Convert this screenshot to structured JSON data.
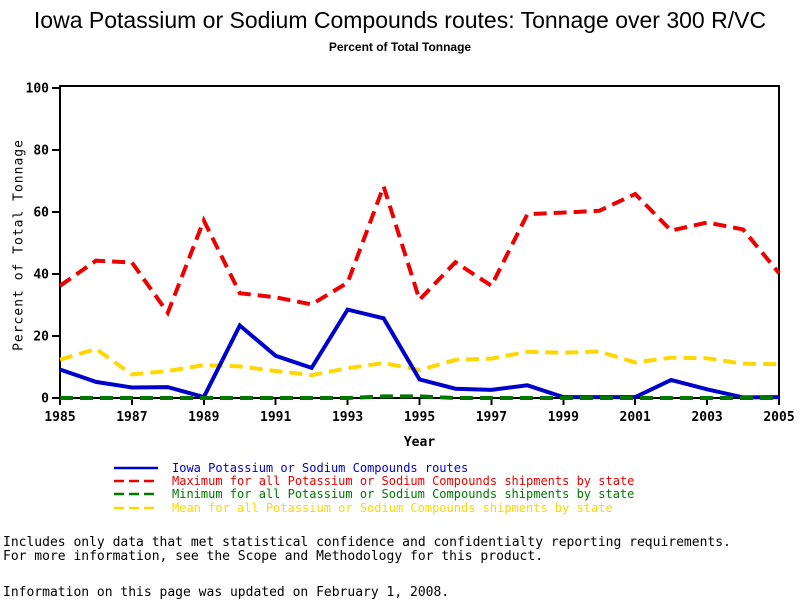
{
  "header": {
    "title": "Iowa Potassium or Sodium Compounds routes: Tonnage over 300 R/VC",
    "subtitle": "Percent of Total Tonnage"
  },
  "chart_data": {
    "type": "line",
    "title": "Iowa Potassium or Sodium Compounds routes: Tonnage over 300 R/VC",
    "subtitle": "Percent of Total Tonnage",
    "xlabel": "Year",
    "ylabel": "Percent of Total Tonnage",
    "xlim": [
      1985,
      2005
    ],
    "ylim": [
      0,
      100
    ],
    "xticks": [
      1985,
      1987,
      1989,
      1991,
      1993,
      1995,
      1997,
      1999,
      2001,
      2003,
      2005
    ],
    "yticks": [
      0,
      20,
      40,
      60,
      80,
      100
    ],
    "grid": false,
    "legend_position": "bottom",
    "x": [
      1985,
      1986,
      1987,
      1988,
      1989,
      1990,
      1991,
      1992,
      1993,
      1994,
      1995,
      1996,
      1997,
      1998,
      1999,
      2000,
      2001,
      2002,
      2003,
      2004,
      2005
    ],
    "series": [
      {
        "name": "Iowa Potassium or Sodium Compounds routes",
        "color": "#0000cc",
        "style": "solid",
        "values": [
          9.2,
          5.2,
          3.4,
          3.5,
          0.3,
          23.4,
          13.6,
          9.7,
          28.5,
          25.7,
          6.0,
          3.0,
          2.6,
          4.1,
          0.3,
          0.3,
          0.3,
          5.8,
          2.8,
          0.2,
          0.3
        ]
      },
      {
        "name": "Maximum for all Potassium or Sodium Compounds shipments by state",
        "color": "#ee0000",
        "style": "dashed",
        "values": [
          36.2,
          44.3,
          43.7,
          27.5,
          57.3,
          33.8,
          32.5,
          30.2,
          37.2,
          68.3,
          31.7,
          43.8,
          36.2,
          59.3,
          59.8,
          60.4,
          65.8,
          54.0,
          56.6,
          54.4,
          40.3
        ]
      },
      {
        "name": "Minimum for all Potassium or Sodium Compounds shipments by state",
        "color": "#007800",
        "style": "dashed",
        "values": [
          0,
          0,
          0,
          0,
          0,
          0,
          0,
          0,
          0,
          0.5,
          0.5,
          0,
          0,
          0,
          0,
          0,
          0,
          0,
          0,
          0,
          0
        ]
      },
      {
        "name": "Mean for all Potassium or Sodium Compounds shipments by state",
        "color": "#ffd700",
        "style": "dashed",
        "values": [
          12.4,
          15.8,
          7.6,
          8.7,
          10.6,
          10.2,
          8.7,
          7.4,
          9.6,
          11.3,
          9.0,
          12.3,
          12.7,
          14.9,
          14.6,
          15.0,
          11.5,
          13.0,
          12.8,
          11.1,
          10.9
        ]
      }
    ]
  },
  "footnotes": {
    "line1": "Includes only data that met statistical confidence and confidentialty reporting requirements.",
    "line2": "For more information, see the Scope and Methodology for this product.",
    "updated": "Information on this page was updated on February 1, 2008."
  }
}
